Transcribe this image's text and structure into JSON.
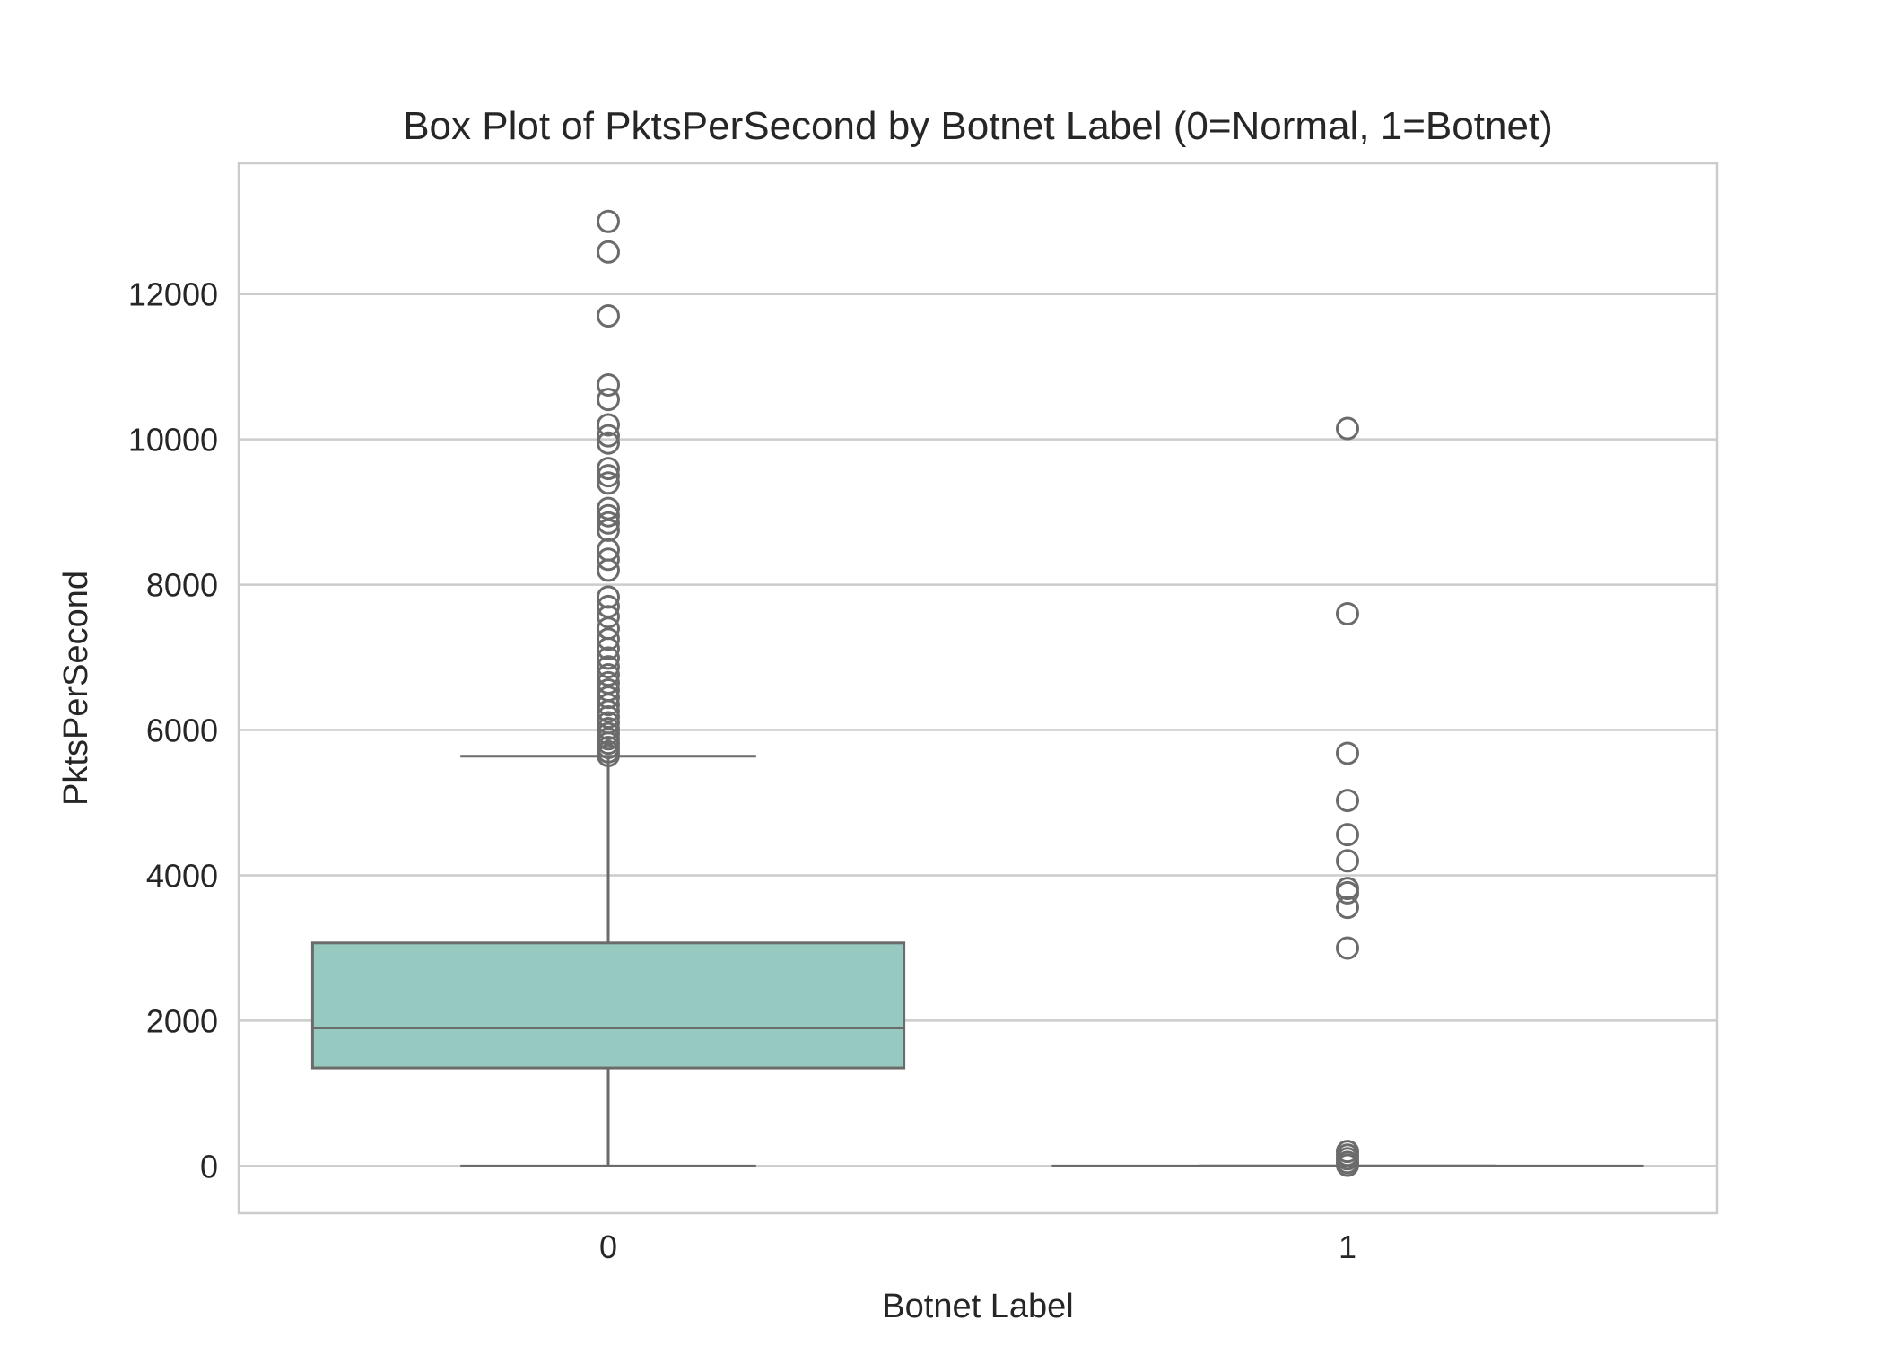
{
  "chart_data": {
    "type": "box",
    "title": "Box Plot of PktsPerSecond by Botnet Label (0=Normal, 1=Botnet)",
    "xlabel": "Botnet Label",
    "ylabel": "PktsPerSecond",
    "categories": [
      "0",
      "1"
    ],
    "ylim": [
      -650,
      13800
    ],
    "yticks": [
      0,
      2000,
      4000,
      6000,
      8000,
      10000,
      12000
    ],
    "ytick_labels": [
      "0",
      "2000",
      "4000",
      "6000",
      "8000",
      "10000",
      "12000"
    ],
    "grid": true,
    "colors": {
      "box_fill": "#96c9c0",
      "line": "#6b6b6b",
      "grid": "#cccccc",
      "frame": "#cccccc"
    },
    "boxes": [
      {
        "category": "0",
        "whisker_low": 0,
        "q1": 1350,
        "median": 1900,
        "q3": 3070,
        "whisker_high": 5640,
        "outliers": [
          5650,
          5700,
          5760,
          5820,
          5880,
          5950,
          6020,
          6100,
          6180,
          6260,
          6350,
          6450,
          6550,
          6650,
          6760,
          6870,
          6990,
          7120,
          7250,
          7400,
          7560,
          7700,
          7830,
          8200,
          8350,
          8480,
          8750,
          8850,
          8950,
          9050,
          9400,
          9500,
          9600,
          9950,
          10050,
          10200,
          10550,
          10750,
          11700,
          12580,
          13000
        ]
      },
      {
        "category": "1",
        "whisker_low": 0,
        "q1": 0,
        "median": 0,
        "q3": 0,
        "whisker_high": 0,
        "outliers": [
          10150,
          7600,
          5680,
          5030,
          4560,
          4200,
          3820,
          3760,
          3560,
          3000,
          200,
          150,
          100,
          50,
          10
        ]
      }
    ]
  }
}
